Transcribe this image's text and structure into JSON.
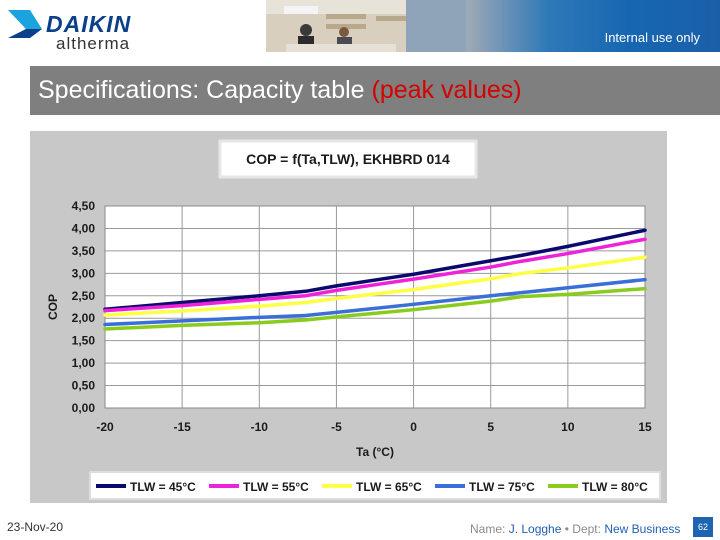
{
  "brand": {
    "name": "DAIKIN",
    "product": "altherma"
  },
  "header": {
    "tag": "Internal use only"
  },
  "slide": {
    "title_main": "Specifications: Capacity table",
    "title_highlight": "(peak values)"
  },
  "footer": {
    "date": "23-Nov-20",
    "name_label": "Name:",
    "name_value": "J. Logghe",
    "separator": "•",
    "dept_label": "Dept:",
    "dept_value": "New Business",
    "page": "62"
  },
  "chart_data": {
    "type": "line",
    "title": "COP = f(Ta,TLW), EKHBRD 014",
    "xlabel": "Ta (°C)",
    "ylabel": "COP",
    "x": [
      -20,
      -15,
      -10,
      -7,
      -5,
      0,
      5,
      7,
      10,
      15
    ],
    "xticks": [
      "-20",
      "-15",
      "-10",
      "-5",
      "0",
      "5",
      "10",
      "15"
    ],
    "xlim": [
      -20,
      15
    ],
    "yticks": [
      "0,00",
      "0,50",
      "1,00",
      "1,50",
      "2,00",
      "2,50",
      "3,00",
      "3,50",
      "4,00",
      "4,50"
    ],
    "ylim": [
      0,
      4.5
    ],
    "grid": true,
    "legend_position": "bottom",
    "series": [
      {
        "name": "TLW = 45°C",
        "color": "#0a0a6e",
        "values": [
          2.2,
          2.35,
          2.5,
          2.6,
          2.72,
          2.98,
          3.28,
          3.4,
          3.6,
          3.96
        ]
      },
      {
        "name": "TLW = 55°C",
        "color": "#ee22d8",
        "values": [
          2.17,
          2.28,
          2.42,
          2.5,
          2.62,
          2.87,
          3.14,
          3.27,
          3.44,
          3.76
        ]
      },
      {
        "name": "TLW = 65°C",
        "color": "#ffff44",
        "values": [
          2.07,
          2.16,
          2.27,
          2.35,
          2.44,
          2.64,
          2.88,
          3.0,
          3.12,
          3.36
        ]
      },
      {
        "name": "TLW = 75°C",
        "color": "#3b6fd8",
        "values": [
          1.86,
          1.94,
          2.02,
          2.06,
          2.13,
          2.31,
          2.5,
          2.57,
          2.68,
          2.86
        ]
      },
      {
        "name": "TLW = 80°C",
        "color": "#8acc1e",
        "values": [
          1.76,
          1.84,
          1.9,
          1.96,
          2.03,
          2.19,
          2.38,
          2.48,
          2.53,
          2.66
        ]
      }
    ]
  }
}
